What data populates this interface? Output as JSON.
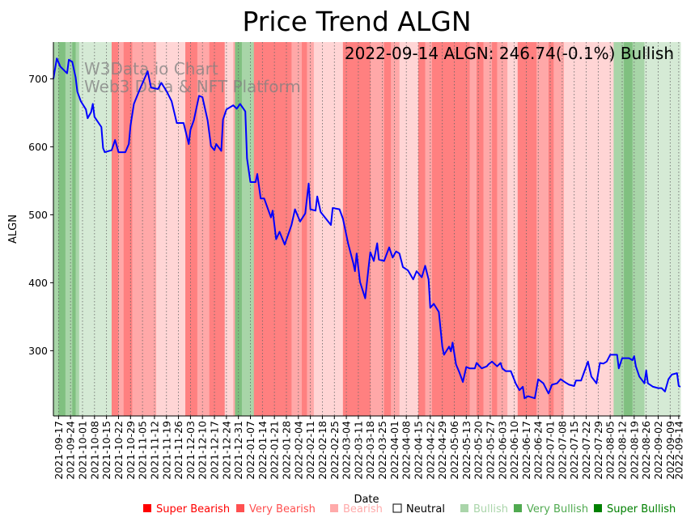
{
  "chart_data": {
    "type": "line",
    "title": "Price Trend ALGN",
    "xlabel": "Date",
    "ylabel": "ALGN",
    "annotation": "2022-09-14 ALGN: 246.74(-0.1%) Bullish",
    "watermark": [
      "W3Data.io Chart",
      "Web3 Data & NFT Platform"
    ],
    "x_unit": "days since 2021-09-17",
    "xlim": [
      -3,
      363
    ],
    "ylim": [
      204,
      754
    ],
    "y_ticks": [
      300,
      400,
      500,
      600,
      700
    ],
    "x_ticks": [
      {
        "day": 0,
        "label": "2021-09-17"
      },
      {
        "day": 7,
        "label": "2021-09-24"
      },
      {
        "day": 14,
        "label": "2021-10-01"
      },
      {
        "day": 21,
        "label": "2021-10-08"
      },
      {
        "day": 28,
        "label": "2021-10-15"
      },
      {
        "day": 35,
        "label": "2021-10-22"
      },
      {
        "day": 42,
        "label": "2021-10-29"
      },
      {
        "day": 49,
        "label": "2021-11-05"
      },
      {
        "day": 56,
        "label": "2021-11-12"
      },
      {
        "day": 63,
        "label": "2021-11-19"
      },
      {
        "day": 70,
        "label": "2021-11-26"
      },
      {
        "day": 77,
        "label": "2021-12-03"
      },
      {
        "day": 84,
        "label": "2021-12-10"
      },
      {
        "day": 91,
        "label": "2021-12-17"
      },
      {
        "day": 98,
        "label": "2021-12-24"
      },
      {
        "day": 105,
        "label": "2021-12-31"
      },
      {
        "day": 112,
        "label": "2022-01-07"
      },
      {
        "day": 119,
        "label": "2022-01-14"
      },
      {
        "day": 126,
        "label": "2022-01-21"
      },
      {
        "day": 133,
        "label": "2022-01-28"
      },
      {
        "day": 140,
        "label": "2022-02-04"
      },
      {
        "day": 147,
        "label": "2022-02-11"
      },
      {
        "day": 154,
        "label": "2022-02-18"
      },
      {
        "day": 161,
        "label": "2022-02-25"
      },
      {
        "day": 168,
        "label": "2022-03-04"
      },
      {
        "day": 175,
        "label": "2022-03-11"
      },
      {
        "day": 182,
        "label": "2022-03-18"
      },
      {
        "day": 189,
        "label": "2022-03-25"
      },
      {
        "day": 196,
        "label": "2022-04-01"
      },
      {
        "day": 203,
        "label": "2022-04-08"
      },
      {
        "day": 210,
        "label": "2022-04-15"
      },
      {
        "day": 217,
        "label": "2022-04-22"
      },
      {
        "day": 224,
        "label": "2022-04-29"
      },
      {
        "day": 231,
        "label": "2022-05-06"
      },
      {
        "day": 238,
        "label": "2022-05-13"
      },
      {
        "day": 245,
        "label": "2022-05-20"
      },
      {
        "day": 252,
        "label": "2022-05-27"
      },
      {
        "day": 259,
        "label": "2022-06-03"
      },
      {
        "day": 266,
        "label": "2022-06-10"
      },
      {
        "day": 273,
        "label": "2022-06-17"
      },
      {
        "day": 280,
        "label": "2022-06-24"
      },
      {
        "day": 287,
        "label": "2022-07-01"
      },
      {
        "day": 294,
        "label": "2022-07-08"
      },
      {
        "day": 301,
        "label": "2022-07-15"
      },
      {
        "day": 308,
        "label": "2022-07-22"
      },
      {
        "day": 315,
        "label": "2022-07-29"
      },
      {
        "day": 322,
        "label": "2022-08-05"
      },
      {
        "day": 329,
        "label": "2022-08-12"
      },
      {
        "day": 336,
        "label": "2022-08-19"
      },
      {
        "day": 343,
        "label": "2022-08-26"
      },
      {
        "day": 350,
        "label": "2022-09-02"
      },
      {
        "day": 357,
        "label": "2022-09-09"
      },
      {
        "day": 362,
        "label": "2022-09-14"
      }
    ],
    "series": [
      {
        "name": "ALGN",
        "color": "#0000ff",
        "points": [
          [
            -3,
            700
          ],
          [
            -1,
            730
          ],
          [
            1,
            718
          ],
          [
            5,
            708
          ],
          [
            6,
            728
          ],
          [
            8,
            725
          ],
          [
            10,
            702
          ],
          [
            11,
            681
          ],
          [
            13,
            667
          ],
          [
            16,
            655
          ],
          [
            17,
            642
          ],
          [
            19,
            651
          ],
          [
            20,
            663
          ],
          [
            21,
            644
          ],
          [
            25,
            629
          ],
          [
            26,
            598
          ],
          [
            27,
            592
          ],
          [
            31,
            595
          ],
          [
            33,
            610
          ],
          [
            35,
            592
          ],
          [
            39,
            592
          ],
          [
            41,
            604
          ],
          [
            42,
            631
          ],
          [
            44,
            663
          ],
          [
            47,
            682
          ],
          [
            52,
            711
          ],
          [
            54,
            687
          ],
          [
            58,
            685
          ],
          [
            60,
            694
          ],
          [
            63,
            682
          ],
          [
            66,
            667
          ],
          [
            68,
            646
          ],
          [
            69,
            635
          ],
          [
            73,
            635
          ],
          [
            76,
            604
          ],
          [
            77,
            625
          ],
          [
            79,
            639
          ],
          [
            82,
            675
          ],
          [
            84,
            673
          ],
          [
            87,
            639
          ],
          [
            89,
            601
          ],
          [
            91,
            595
          ],
          [
            92,
            604
          ],
          [
            95,
            594
          ],
          [
            96,
            640
          ],
          [
            98,
            655
          ],
          [
            102,
            661
          ],
          [
            104,
            656
          ],
          [
            106,
            663
          ],
          [
            109,
            652
          ],
          [
            110,
            583
          ],
          [
            112,
            548
          ],
          [
            115,
            548
          ],
          [
            116,
            560
          ],
          [
            118,
            524
          ],
          [
            120,
            524
          ],
          [
            124,
            496
          ],
          [
            125,
            506
          ],
          [
            127,
            464
          ],
          [
            129,
            475
          ],
          [
            132,
            456
          ],
          [
            136,
            485
          ],
          [
            138,
            508
          ],
          [
            141,
            490
          ],
          [
            144,
            502
          ],
          [
            146,
            546
          ],
          [
            147,
            508
          ],
          [
            150,
            506
          ],
          [
            151,
            527
          ],
          [
            153,
            504
          ],
          [
            159,
            485
          ],
          [
            160,
            510
          ],
          [
            164,
            508
          ],
          [
            166,
            494
          ],
          [
            169,
            458
          ],
          [
            172,
            429
          ],
          [
            173,
            417
          ],
          [
            174,
            443
          ],
          [
            176,
            401
          ],
          [
            179,
            377
          ],
          [
            181,
            423
          ],
          [
            182,
            445
          ],
          [
            184,
            432
          ],
          [
            186,
            458
          ],
          [
            187,
            434
          ],
          [
            190,
            432
          ],
          [
            193,
            452
          ],
          [
            195,
            437
          ],
          [
            197,
            446
          ],
          [
            199,
            443
          ],
          [
            201,
            423
          ],
          [
            204,
            418
          ],
          [
            207,
            405
          ],
          [
            209,
            417
          ],
          [
            212,
            408
          ],
          [
            214,
            425
          ],
          [
            216,
            405
          ],
          [
            217,
            363
          ],
          [
            219,
            369
          ],
          [
            222,
            357
          ],
          [
            224,
            306
          ],
          [
            225,
            294
          ],
          [
            228,
            306
          ],
          [
            229,
            299
          ],
          [
            230,
            312
          ],
          [
            232,
            280
          ],
          [
            234,
            268
          ],
          [
            236,
            254
          ],
          [
            238,
            276
          ],
          [
            240,
            274
          ],
          [
            243,
            274
          ],
          [
            244,
            282
          ],
          [
            247,
            274
          ],
          [
            250,
            277
          ],
          [
            251,
            280
          ],
          [
            253,
            284
          ],
          [
            256,
            277
          ],
          [
            258,
            282
          ],
          [
            259,
            274
          ],
          [
            261,
            270
          ],
          [
            264,
            270
          ],
          [
            267,
            251
          ],
          [
            269,
            242
          ],
          [
            271,
            247
          ],
          [
            272,
            230
          ],
          [
            274,
            233
          ],
          [
            278,
            230
          ],
          [
            280,
            258
          ],
          [
            283,
            252
          ],
          [
            285,
            242
          ],
          [
            286,
            237
          ],
          [
            288,
            250
          ],
          [
            291,
            252
          ],
          [
            293,
            258
          ],
          [
            296,
            253
          ],
          [
            298,
            250
          ],
          [
            301,
            248
          ],
          [
            302,
            256
          ],
          [
            305,
            256
          ],
          [
            307,
            270
          ],
          [
            309,
            284
          ],
          [
            311,
            262
          ],
          [
            314,
            252
          ],
          [
            316,
            282
          ],
          [
            318,
            281
          ],
          [
            320,
            284
          ],
          [
            322,
            294
          ],
          [
            326,
            294
          ],
          [
            327,
            274
          ],
          [
            329,
            289
          ],
          [
            333,
            289
          ],
          [
            335,
            286
          ],
          [
            336,
            292
          ],
          [
            337,
            277
          ],
          [
            339,
            262
          ],
          [
            342,
            252
          ],
          [
            343,
            271
          ],
          [
            344,
            252
          ],
          [
            347,
            247
          ],
          [
            350,
            245
          ],
          [
            352,
            245
          ],
          [
            354,
            240
          ],
          [
            356,
            258
          ],
          [
            358,
            265
          ],
          [
            361,
            267
          ],
          [
            362,
            248
          ],
          [
            363,
            247
          ]
        ]
      }
    ],
    "sentiment_bands": [
      [
        -3,
        0,
        2
      ],
      [
        0,
        4,
        3
      ],
      [
        4,
        8,
        2
      ],
      [
        8,
        10,
        3
      ],
      [
        10,
        12,
        2
      ],
      [
        12,
        31,
        1
      ],
      [
        31,
        35,
        -3
      ],
      [
        35,
        38,
        -2
      ],
      [
        38,
        43,
        -3
      ],
      [
        43,
        57,
        -2
      ],
      [
        57,
        74,
        -1
      ],
      [
        74,
        81,
        -3
      ],
      [
        81,
        88,
        -2
      ],
      [
        88,
        97,
        -3
      ],
      [
        97,
        102,
        -1
      ],
      [
        102,
        103,
        -2
      ],
      [
        103,
        107,
        3
      ],
      [
        107,
        114,
        2
      ],
      [
        114,
        136,
        -3
      ],
      [
        136,
        142,
        -2
      ],
      [
        142,
        145,
        -3
      ],
      [
        145,
        149,
        -2
      ],
      [
        149,
        166,
        -1
      ],
      [
        166,
        182,
        -3
      ],
      [
        182,
        190,
        -2
      ],
      [
        190,
        194,
        -3
      ],
      [
        194,
        199,
        -2
      ],
      [
        199,
        210,
        -1
      ],
      [
        210,
        214,
        -3
      ],
      [
        214,
        218,
        -2
      ],
      [
        218,
        240,
        -3
      ],
      [
        240,
        244,
        -2
      ],
      [
        244,
        248,
        -3
      ],
      [
        248,
        253,
        -2
      ],
      [
        253,
        256,
        -3
      ],
      [
        256,
        262,
        -2
      ],
      [
        262,
        268,
        -1
      ],
      [
        268,
        279,
        -3
      ],
      [
        279,
        286,
        -2
      ],
      [
        286,
        289,
        -3
      ],
      [
        289,
        295,
        -2
      ],
      [
        295,
        324,
        -1
      ],
      [
        324,
        330,
        2
      ],
      [
        330,
        335,
        3
      ],
      [
        335,
        342,
        2
      ],
      [
        342,
        363,
        1
      ]
    ],
    "legend": {
      "placement": "bottom",
      "entries": [
        {
          "label": "Super Bearish",
          "level": -3,
          "color": "#ff0000"
        },
        {
          "label": "Very Bearish",
          "level": -2,
          "color": "#ff5050"
        },
        {
          "label": "Bearish",
          "level": -1,
          "color": "#ffaaaa"
        },
        {
          "label": "Neutral",
          "level": 0,
          "color": "#ffffff"
        },
        {
          "label": "Bullish",
          "level": 1,
          "color": "#aad5aa"
        },
        {
          "label": "Very Bullish",
          "level": 2,
          "color": "#50aa50"
        },
        {
          "label": "Super Bullish",
          "level": 3,
          "color": "#008000"
        }
      ]
    },
    "band_colors": {
      "-3": "#ff8080",
      "-2": "#ffa8a8",
      "-1": "#ffd5d5",
      "0": "#ffffff",
      "1": "#d5ead5",
      "2": "#a8d5a8",
      "3": "#80c080"
    }
  }
}
